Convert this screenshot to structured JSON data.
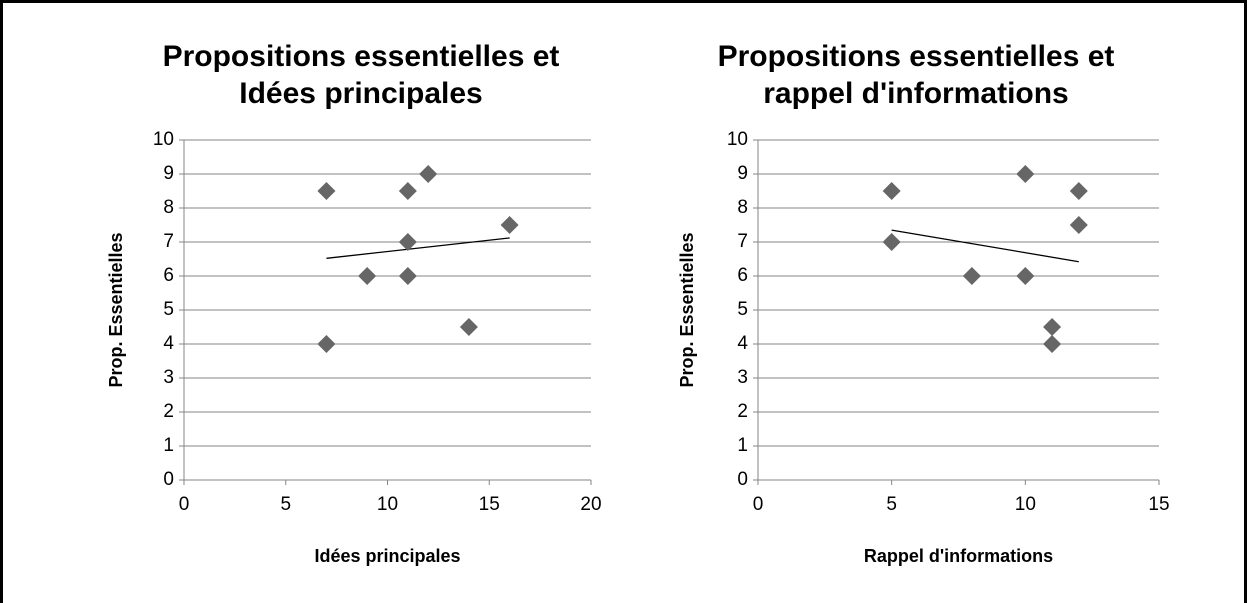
{
  "chart_data": [
    {
      "type": "scatter",
      "title": [
        "Propositions essentielles et",
        "Idées principales"
      ],
      "xlabel": "Idées principales",
      "ylabel": "Prop. Essentielles",
      "x": [
        7,
        7,
        9,
        11,
        11,
        11,
        12,
        14,
        16
      ],
      "values": [
        8.5,
        4,
        6,
        8.5,
        7,
        6,
        9,
        4.5,
        7.5
      ],
      "color": "#666666",
      "xlim": [
        0,
        20
      ],
      "xticks": [
        0,
        5,
        10,
        15,
        20
      ],
      "ylim": [
        0,
        10
      ],
      "yticks": [
        0,
        1,
        2,
        3,
        4,
        5,
        6,
        7,
        8,
        9,
        10
      ],
      "grid": true,
      "trendline": {
        "x": [
          7,
          16
        ],
        "values": [
          6.52,
          7.12
        ],
        "color": "#000000"
      }
    },
    {
      "type": "scatter",
      "title": [
        "Propositions essentielles et",
        "rappel d'informations"
      ],
      "xlabel": "Rappel d'informations",
      "ylabel": "Prop. Essentielles",
      "x": [
        5,
        5,
        8,
        10,
        10,
        11,
        11,
        12,
        12
      ],
      "values": [
        8.5,
        7,
        6,
        9,
        6,
        4.5,
        4,
        8.5,
        7.5
      ],
      "color": "#666666",
      "xlim": [
        0,
        15
      ],
      "xticks": [
        0,
        5,
        10,
        15
      ],
      "ylim": [
        0,
        10
      ],
      "yticks": [
        0,
        1,
        2,
        3,
        4,
        5,
        6,
        7,
        8,
        9,
        10
      ],
      "grid": true,
      "trendline": {
        "x": [
          5,
          12
        ],
        "values": [
          7.35,
          6.42
        ],
        "color": "#000000"
      }
    }
  ]
}
